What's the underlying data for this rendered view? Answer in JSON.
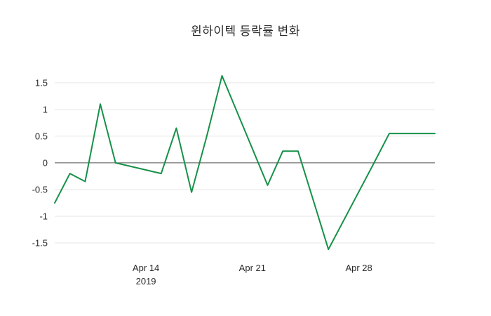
{
  "page": {
    "background": "#ffffff"
  },
  "chart_data": {
    "type": "line",
    "title": "윈하이텍 등락률 변화",
    "xlabel": "",
    "ylabel": "",
    "legend": "none",
    "grid": "horizontal",
    "zero_line": true,
    "y_ticks": [
      -1.5,
      -1,
      -0.5,
      0,
      0.5,
      1,
      1.5
    ],
    "y_range": [
      -1.75,
      1.8
    ],
    "x_range_days": [
      0,
      25
    ],
    "x_ticks": [
      {
        "label": "Apr 14",
        "sub": "2019",
        "day": 6
      },
      {
        "label": "Apr 21",
        "sub": "",
        "day": 13
      },
      {
        "label": "Apr 28",
        "sub": "",
        "day": 20
      }
    ],
    "series": [
      {
        "name": "등락률",
        "color": "#169149",
        "points": [
          {
            "date": "2019-04-08",
            "day": 0,
            "value": -0.75
          },
          {
            "date": "2019-04-09",
            "day": 1,
            "value": -0.2
          },
          {
            "date": "2019-04-10",
            "day": 2,
            "value": -0.35
          },
          {
            "date": "2019-04-11",
            "day": 3,
            "value": 1.1
          },
          {
            "date": "2019-04-12",
            "day": 4,
            "value": 0.0
          },
          {
            "date": "2019-04-15",
            "day": 7,
            "value": -0.2
          },
          {
            "date": "2019-04-16",
            "day": 8,
            "value": 0.65
          },
          {
            "date": "2019-04-17",
            "day": 9,
            "value": -0.55
          },
          {
            "date": "2019-04-18",
            "day": 10,
            "value": 0.5
          },
          {
            "date": "2019-04-19",
            "day": 11,
            "value": 1.63
          },
          {
            "date": "2019-04-22",
            "day": 14,
            "value": -0.42
          },
          {
            "date": "2019-04-23",
            "day": 15,
            "value": 0.22
          },
          {
            "date": "2019-04-24",
            "day": 16,
            "value": 0.22
          },
          {
            "date": "2019-04-25",
            "day": 17,
            "value": -0.7
          },
          {
            "date": "2019-04-26",
            "day": 18,
            "value": -1.62
          },
          {
            "date": "2019-04-29",
            "day": 21,
            "value": 0.0
          },
          {
            "date": "2019-04-30",
            "day": 22,
            "value": 0.55
          },
          {
            "date": "2019-05-02",
            "day": 24,
            "value": 0.55
          },
          {
            "date": "2019-05-03",
            "day": 25,
            "value": 0.55
          }
        ]
      }
    ]
  }
}
